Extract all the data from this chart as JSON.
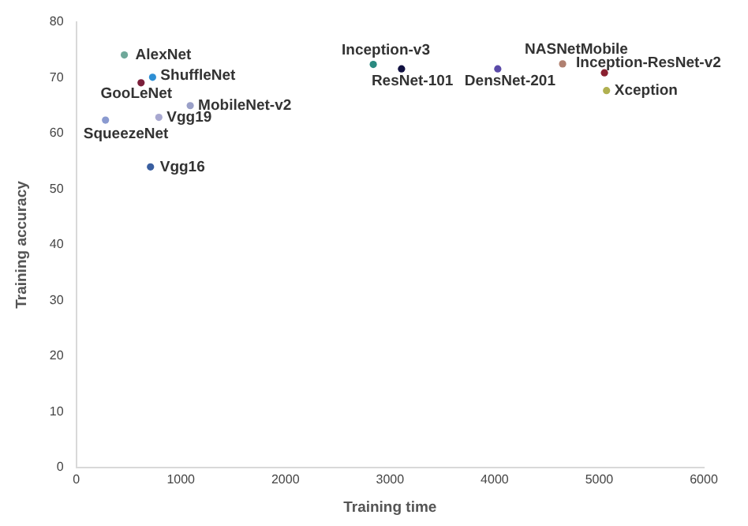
{
  "chart_data": {
    "type": "scatter",
    "xlabel": "Training time",
    "ylabel": "Training accuracy",
    "xlim": [
      0,
      6000
    ],
    "xticks": [
      0,
      1000,
      2000,
      3000,
      4000,
      5000,
      6000
    ],
    "ylim": [
      0,
      80
    ],
    "yticks": [
      0,
      10,
      20,
      30,
      40,
      50,
      60,
      70,
      80
    ],
    "grid": false,
    "legend": false,
    "marker": "circle",
    "series": [
      {
        "name": "AlexNet",
        "color": "#6fa89a",
        "x": [
          460
        ],
        "values": [
          74.1
        ]
      },
      {
        "name": "ShuffleNet",
        "color": "#2e8fd4",
        "x": [
          730
        ],
        "values": [
          70.1
        ]
      },
      {
        "name": "GooLeNet",
        "color": "#7b1f3a",
        "x": [
          620
        ],
        "values": [
          69.1
        ]
      },
      {
        "name": "MobileNet-v2",
        "color": "#9aa0c8",
        "x": [
          1090
        ],
        "values": [
          65.0
        ]
      },
      {
        "name": "Vgg19",
        "color": "#a8a8d0",
        "x": [
          790
        ],
        "values": [
          62.9
        ]
      },
      {
        "name": "SqueezeNet",
        "color": "#8a9ad0",
        "x": [
          280
        ],
        "values": [
          62.4
        ]
      },
      {
        "name": "Vgg16",
        "color": "#3a5fa0",
        "x": [
          710
        ],
        "values": [
          54.0
        ]
      },
      {
        "name": "Inception-v3",
        "color": "#2a8a80",
        "x": [
          2840
        ],
        "values": [
          72.4
        ]
      },
      {
        "name": "ResNet-101",
        "color": "#101040",
        "x": [
          3110
        ],
        "values": [
          71.6
        ]
      },
      {
        "name": "DensNet-201",
        "color": "#5a4aa8",
        "x": [
          4030
        ],
        "values": [
          71.6
        ]
      },
      {
        "name": "NASNetMobile",
        "color": "#b08070",
        "x": [
          4650
        ],
        "values": [
          72.5
        ]
      },
      {
        "name": "Inception-ResNet-v2",
        "color": "#8a2030",
        "x": [
          5050
        ],
        "values": [
          70.9
        ]
      },
      {
        "name": "Xception",
        "color": "#b0b050",
        "x": [
          5070
        ],
        "values": [
          67.7
        ]
      }
    ]
  }
}
